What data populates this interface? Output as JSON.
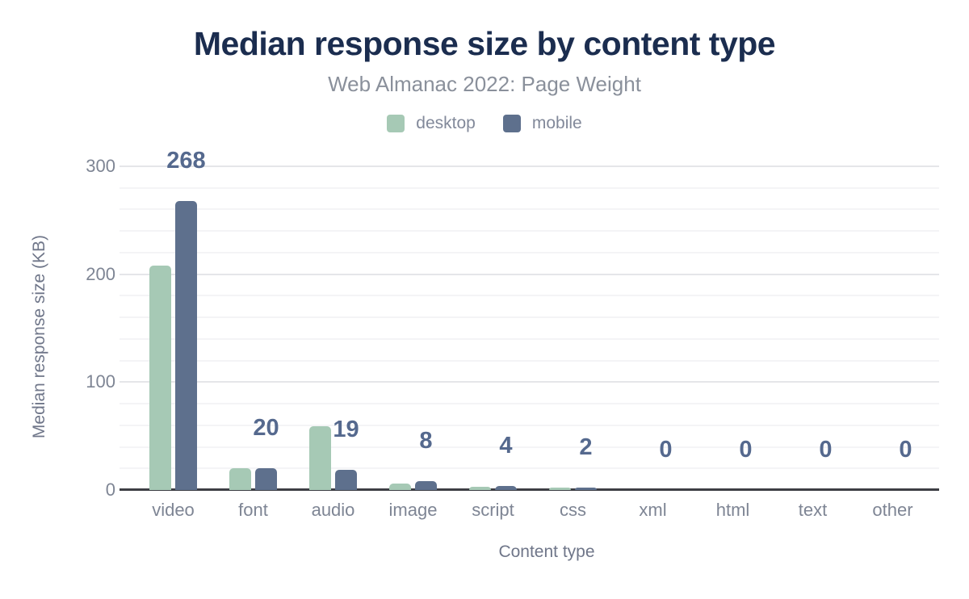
{
  "chart_data": {
    "type": "bar",
    "title": "Median response size by content type",
    "subtitle": "Web Almanac 2022: Page Weight",
    "xlabel": "Content type",
    "ylabel": "Median response size (KB)",
    "categories": [
      "video",
      "font",
      "audio",
      "image",
      "script",
      "css",
      "xml",
      "html",
      "text",
      "other"
    ],
    "series": [
      {
        "name": "desktop",
        "color": "#a6c9b5",
        "values": [
          208,
          20,
          59,
          6,
          3,
          2,
          0,
          0,
          0,
          0
        ]
      },
      {
        "name": "mobile",
        "color": "#5e708d",
        "values": [
          268,
          20,
          19,
          8,
          4,
          2,
          0,
          0,
          0,
          0
        ]
      }
    ],
    "data_labels": {
      "series": "mobile",
      "values": [
        "268",
        "20",
        "19",
        "8",
        "4",
        "2",
        "0",
        "0",
        "0",
        "0"
      ]
    },
    "ylim": [
      0,
      300
    ],
    "yticks": [
      0,
      100,
      200,
      300
    ],
    "minor_grid_step": 20,
    "grid": "on",
    "legend_position": "top",
    "colors": {
      "title": "#1b2d4f",
      "subtitle": "#8a909b",
      "data_label": "#55698e",
      "tick_label": "#7e8594",
      "axis_title": "#6f7689",
      "axis_line": "#3d3e44",
      "major_grid": "#e5e6e9",
      "minor_grid": "#f4f4f6"
    }
  }
}
